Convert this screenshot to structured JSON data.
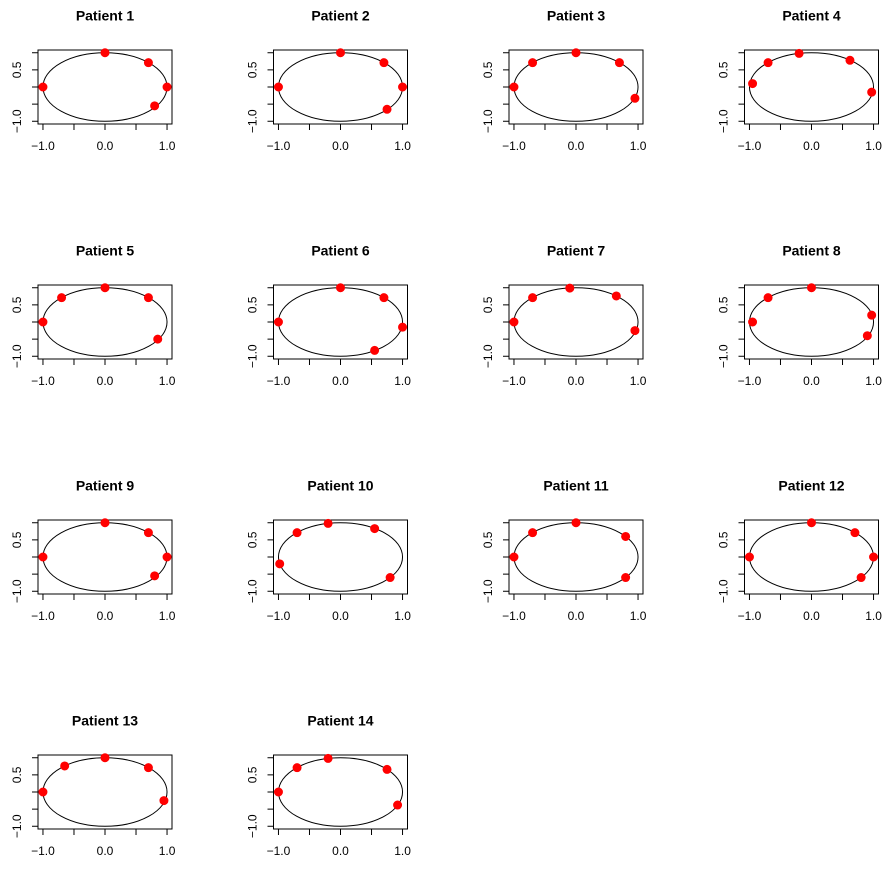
{
  "chart_data": [
    {
      "type": "scatter",
      "title": "Patient 1",
      "x": [
        -1,
        0,
        0.7,
        1,
        0.8
      ],
      "values": [
        0,
        1,
        0.71,
        0,
        -0.55
      ],
      "color": "#ff0000",
      "xlim": [
        -1.08,
        1.08
      ],
      "ylim": [
        -1.08,
        1.08
      ],
      "xticks": [
        {
          "value": -1,
          "label": "−1.0"
        },
        {
          "value": -0.5,
          "label": null
        },
        {
          "value": 0,
          "label": "0.0"
        },
        {
          "value": 0.5,
          "label": null
        },
        {
          "value": 1,
          "label": "1.0"
        }
      ],
      "yticks": [
        {
          "value": -1,
          "label": "−1.0"
        },
        {
          "value": -0.5,
          "label": null
        },
        {
          "value": 0,
          "label": null
        },
        {
          "value": 0.5,
          "label": "0.5"
        },
        {
          "value": 1,
          "label": null
        }
      ]
    },
    {
      "type": "scatter",
      "title": "Patient 2",
      "x": [
        -1,
        0,
        0.7,
        1,
        0.75
      ],
      "values": [
        0,
        1,
        0.71,
        0,
        -0.65
      ],
      "color": "#ff0000",
      "xlim": [
        -1.08,
        1.08
      ],
      "ylim": [
        -1.08,
        1.08
      ],
      "xticks": [
        {
          "value": -1,
          "label": "−1.0"
        },
        {
          "value": -0.5,
          "label": null
        },
        {
          "value": 0,
          "label": "0.0"
        },
        {
          "value": 0.5,
          "label": null
        },
        {
          "value": 1,
          "label": "1.0"
        }
      ],
      "yticks": [
        {
          "value": -1,
          "label": "−1.0"
        },
        {
          "value": -0.5,
          "label": null
        },
        {
          "value": 0,
          "label": null
        },
        {
          "value": 0.5,
          "label": "0.5"
        },
        {
          "value": 1,
          "label": null
        }
      ]
    },
    {
      "type": "scatter",
      "title": "Patient 3",
      "x": [
        -1,
        -0.7,
        0,
        0.7,
        0.95
      ],
      "values": [
        0,
        0.71,
        1,
        0.71,
        -0.33
      ],
      "color": "#ff0000",
      "xlim": [
        -1.08,
        1.08
      ],
      "ylim": [
        -1.08,
        1.08
      ],
      "xticks": [
        {
          "value": -1,
          "label": "−1.0"
        },
        {
          "value": -0.5,
          "label": null
        },
        {
          "value": 0,
          "label": "0.0"
        },
        {
          "value": 0.5,
          "label": null
        },
        {
          "value": 1,
          "label": "1.0"
        }
      ],
      "yticks": [
        {
          "value": -1,
          "label": "−1.0"
        },
        {
          "value": -0.5,
          "label": null
        },
        {
          "value": 0,
          "label": null
        },
        {
          "value": 0.5,
          "label": "0.5"
        },
        {
          "value": 1,
          "label": null
        }
      ]
    },
    {
      "type": "scatter",
      "title": "Patient 4",
      "x": [
        -0.95,
        -0.7,
        -0.2,
        0.62,
        0.97
      ],
      "values": [
        0.1,
        0.71,
        0.98,
        0.78,
        -0.15
      ],
      "color": "#ff0000",
      "xlim": [
        -1.08,
        1.08
      ],
      "ylim": [
        -1.08,
        1.08
      ],
      "xticks": [
        {
          "value": -1,
          "label": "−1.0"
        },
        {
          "value": -0.5,
          "label": null
        },
        {
          "value": 0,
          "label": "0.0"
        },
        {
          "value": 0.5,
          "label": null
        },
        {
          "value": 1,
          "label": "1.0"
        }
      ],
      "yticks": [
        {
          "value": -1,
          "label": "−1.0"
        },
        {
          "value": -0.5,
          "label": null
        },
        {
          "value": 0,
          "label": null
        },
        {
          "value": 0.5,
          "label": "0.5"
        },
        {
          "value": 1,
          "label": null
        }
      ]
    },
    {
      "type": "scatter",
      "title": "Patient 5",
      "x": [
        -1,
        -0.7,
        0,
        0.7,
        0.85
      ],
      "values": [
        0,
        0.71,
        1,
        0.71,
        -0.5
      ],
      "color": "#ff0000",
      "xlim": [
        -1.08,
        1.08
      ],
      "ylim": [
        -1.08,
        1.08
      ],
      "xticks": [
        {
          "value": -1,
          "label": "−1.0"
        },
        {
          "value": -0.5,
          "label": null
        },
        {
          "value": 0,
          "label": "0.0"
        },
        {
          "value": 0.5,
          "label": null
        },
        {
          "value": 1,
          "label": "1.0"
        }
      ],
      "yticks": [
        {
          "value": -1,
          "label": "−1.0"
        },
        {
          "value": -0.5,
          "label": null
        },
        {
          "value": 0,
          "label": null
        },
        {
          "value": 0.5,
          "label": "0.5"
        },
        {
          "value": 1,
          "label": null
        }
      ]
    },
    {
      "type": "scatter",
      "title": "Patient 6",
      "x": [
        -1,
        0,
        0.7,
        1,
        0.55
      ],
      "values": [
        0,
        1,
        0.71,
        -0.15,
        -0.83
      ],
      "color": "#ff0000",
      "xlim": [
        -1.08,
        1.08
      ],
      "ylim": [
        -1.08,
        1.08
      ],
      "xticks": [
        {
          "value": -1,
          "label": "−1.0"
        },
        {
          "value": -0.5,
          "label": null
        },
        {
          "value": 0,
          "label": "0.0"
        },
        {
          "value": 0.5,
          "label": null
        },
        {
          "value": 1,
          "label": "1.0"
        }
      ],
      "yticks": [
        {
          "value": -1,
          "label": "−1.0"
        },
        {
          "value": -0.5,
          "label": null
        },
        {
          "value": 0,
          "label": null
        },
        {
          "value": 0.5,
          "label": "0.5"
        },
        {
          "value": 1,
          "label": null
        }
      ]
    },
    {
      "type": "scatter",
      "title": "Patient 7",
      "x": [
        -1,
        -0.7,
        -0.1,
        0.65,
        0.95
      ],
      "values": [
        0,
        0.71,
        0.99,
        0.76,
        -0.25
      ],
      "color": "#ff0000",
      "xlim": [
        -1.08,
        1.08
      ],
      "ylim": [
        -1.08,
        1.08
      ],
      "xticks": [
        {
          "value": -1,
          "label": "−1.0"
        },
        {
          "value": -0.5,
          "label": null
        },
        {
          "value": 0,
          "label": "0.0"
        },
        {
          "value": 0.5,
          "label": null
        },
        {
          "value": 1,
          "label": "1.0"
        }
      ],
      "yticks": [
        {
          "value": -1,
          "label": "−1.0"
        },
        {
          "value": -0.5,
          "label": null
        },
        {
          "value": 0,
          "label": null
        },
        {
          "value": 0.5,
          "label": "0.5"
        },
        {
          "value": 1,
          "label": null
        }
      ]
    },
    {
      "type": "scatter",
      "title": "Patient 8",
      "x": [
        -0.95,
        -0.7,
        0,
        0.97,
        0.9
      ],
      "values": [
        0,
        0.71,
        1,
        0.2,
        -0.4
      ],
      "color": "#ff0000",
      "xlim": [
        -1.08,
        1.08
      ],
      "ylim": [
        -1.08,
        1.08
      ],
      "xticks": [
        {
          "value": -1,
          "label": "−1.0"
        },
        {
          "value": -0.5,
          "label": null
        },
        {
          "value": 0,
          "label": "0.0"
        },
        {
          "value": 0.5,
          "label": null
        },
        {
          "value": 1,
          "label": "1.0"
        }
      ],
      "yticks": [
        {
          "value": -1,
          "label": "−1.0"
        },
        {
          "value": -0.5,
          "label": null
        },
        {
          "value": 0,
          "label": null
        },
        {
          "value": 0.5,
          "label": "0.5"
        },
        {
          "value": 1,
          "label": null
        }
      ]
    },
    {
      "type": "scatter",
      "title": "Patient 9",
      "x": [
        -1,
        0,
        0.7,
        1,
        0.8
      ],
      "values": [
        0,
        1,
        0.71,
        0,
        -0.55
      ],
      "color": "#ff0000",
      "xlim": [
        -1.08,
        1.08
      ],
      "ylim": [
        -1.08,
        1.08
      ],
      "xticks": [
        {
          "value": -1,
          "label": "−1.0"
        },
        {
          "value": -0.5,
          "label": null
        },
        {
          "value": 0,
          "label": "0.0"
        },
        {
          "value": 0.5,
          "label": null
        },
        {
          "value": 1,
          "label": "1.0"
        }
      ],
      "yticks": [
        {
          "value": -1,
          "label": "−1.0"
        },
        {
          "value": -0.5,
          "label": null
        },
        {
          "value": 0,
          "label": null
        },
        {
          "value": 0.5,
          "label": "0.5"
        },
        {
          "value": 1,
          "label": null
        }
      ]
    },
    {
      "type": "scatter",
      "title": "Patient 10",
      "x": [
        -0.98,
        -0.7,
        -0.2,
        0.55,
        0.8
      ],
      "values": [
        -0.2,
        0.71,
        0.98,
        0.83,
        -0.6
      ],
      "color": "#ff0000",
      "xlim": [
        -1.08,
        1.08
      ],
      "ylim": [
        -1.08,
        1.08
      ],
      "xticks": [
        {
          "value": -1,
          "label": "−1.0"
        },
        {
          "value": -0.5,
          "label": null
        },
        {
          "value": 0,
          "label": "0.0"
        },
        {
          "value": 0.5,
          "label": null
        },
        {
          "value": 1,
          "label": "1.0"
        }
      ],
      "yticks": [
        {
          "value": -1,
          "label": "−1.0"
        },
        {
          "value": -0.5,
          "label": null
        },
        {
          "value": 0,
          "label": null
        },
        {
          "value": 0.5,
          "label": "0.5"
        },
        {
          "value": 1,
          "label": null
        }
      ]
    },
    {
      "type": "scatter",
      "title": "Patient 11",
      "x": [
        -1,
        -0.7,
        0,
        0.8,
        0.8
      ],
      "values": [
        0,
        0.71,
        1,
        0.6,
        -0.6
      ],
      "color": "#ff0000",
      "xlim": [
        -1.08,
        1.08
      ],
      "ylim": [
        -1.08,
        1.08
      ],
      "xticks": [
        {
          "value": -1,
          "label": "−1.0"
        },
        {
          "value": -0.5,
          "label": null
        },
        {
          "value": 0,
          "label": "0.0"
        },
        {
          "value": 0.5,
          "label": null
        },
        {
          "value": 1,
          "label": "1.0"
        }
      ],
      "yticks": [
        {
          "value": -1,
          "label": "−1.0"
        },
        {
          "value": -0.5,
          "label": null
        },
        {
          "value": 0,
          "label": null
        },
        {
          "value": 0.5,
          "label": "0.5"
        },
        {
          "value": 1,
          "label": null
        }
      ]
    },
    {
      "type": "scatter",
      "title": "Patient 12",
      "x": [
        -1,
        0,
        0.7,
        1,
        0.8
      ],
      "values": [
        0,
        1,
        0.71,
        0,
        -0.6
      ],
      "color": "#ff0000",
      "xlim": [
        -1.08,
        1.08
      ],
      "ylim": [
        -1.08,
        1.08
      ],
      "xticks": [
        {
          "value": -1,
          "label": "−1.0"
        },
        {
          "value": -0.5,
          "label": null
        },
        {
          "value": 0,
          "label": "0.0"
        },
        {
          "value": 0.5,
          "label": null
        },
        {
          "value": 1,
          "label": "1.0"
        }
      ],
      "yticks": [
        {
          "value": -1,
          "label": "−1.0"
        },
        {
          "value": -0.5,
          "label": null
        },
        {
          "value": 0,
          "label": null
        },
        {
          "value": 0.5,
          "label": "0.5"
        },
        {
          "value": 1,
          "label": null
        }
      ]
    },
    {
      "type": "scatter",
      "title": "Patient 13",
      "x": [
        -1,
        -0.65,
        0,
        0.7,
        0.95
      ],
      "values": [
        0,
        0.76,
        1,
        0.71,
        -0.25
      ],
      "color": "#ff0000",
      "xlim": [
        -1.08,
        1.08
      ],
      "ylim": [
        -1.08,
        1.08
      ],
      "xticks": [
        {
          "value": -1,
          "label": "−1.0"
        },
        {
          "value": -0.5,
          "label": null
        },
        {
          "value": 0,
          "label": "0.0"
        },
        {
          "value": 0.5,
          "label": null
        },
        {
          "value": 1,
          "label": "1.0"
        }
      ],
      "yticks": [
        {
          "value": -1,
          "label": "−1.0"
        },
        {
          "value": -0.5,
          "label": null
        },
        {
          "value": 0,
          "label": null
        },
        {
          "value": 0.5,
          "label": "0.5"
        },
        {
          "value": 1,
          "label": null
        }
      ]
    },
    {
      "type": "scatter",
      "title": "Patient 14",
      "x": [
        -1,
        -0.7,
        -0.2,
        0.75,
        0.92
      ],
      "values": [
        0,
        0.71,
        0.98,
        0.66,
        -0.38
      ],
      "color": "#ff0000",
      "xlim": [
        -1.08,
        1.08
      ],
      "ylim": [
        -1.08,
        1.08
      ],
      "xticks": [
        {
          "value": -1,
          "label": "−1.0"
        },
        {
          "value": -0.5,
          "label": null
        },
        {
          "value": 0,
          "label": "0.0"
        },
        {
          "value": 0.5,
          "label": null
        },
        {
          "value": 1,
          "label": "1.0"
        }
      ],
      "yticks": [
        {
          "value": -1,
          "label": "−1.0"
        },
        {
          "value": -0.5,
          "label": null
        },
        {
          "value": 0,
          "label": null
        },
        {
          "value": 0.5,
          "label": "0.5"
        },
        {
          "value": 1,
          "label": null
        }
      ]
    }
  ]
}
